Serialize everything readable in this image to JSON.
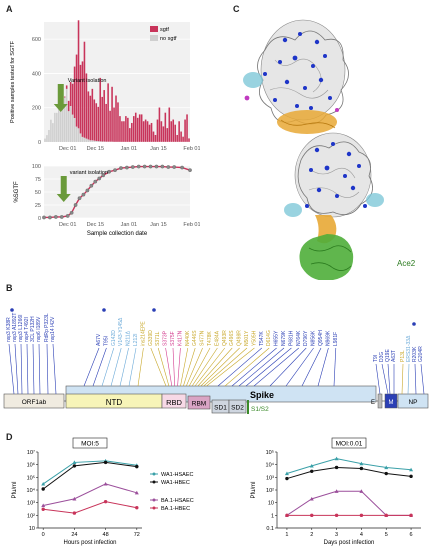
{
  "panels": {
    "a": "A",
    "b": "B",
    "c": "C",
    "d": "D"
  },
  "chart_data": [
    {
      "type": "bar",
      "id": "A-top",
      "ylabel": "Positive samples tested for SGTF",
      "ylim": [
        0,
        700
      ],
      "yticks": [
        "0",
        "200",
        "400",
        "600"
      ],
      "xticks": [
        "Dec 01",
        "Dec 15",
        "Jan 01",
        "Jan 15",
        "Feb 01"
      ],
      "legend": [
        "sgtf",
        "no sgtf"
      ],
      "legend_position": "top-right",
      "annotation": "Variant isolation",
      "series": [
        {
          "name": "no sgtf",
          "color": "#cfcfcf",
          "values": [
            20,
            40,
            70,
            130,
            110,
            170,
            170,
            230,
            250,
            220,
            260,
            310,
            180,
            210,
            160,
            140,
            90,
            80,
            50,
            30,
            25,
            20,
            15,
            10,
            10,
            8,
            6,
            5,
            4,
            3,
            3,
            2,
            2,
            2,
            2,
            1,
            1,
            1,
            1,
            1,
            1,
            1,
            1,
            1,
            1,
            1,
            1,
            1,
            1,
            1,
            1,
            1,
            1,
            1,
            1,
            1,
            1,
            1,
            1,
            1,
            1,
            1,
            1,
            1,
            1,
            1,
            1,
            1,
            1,
            1,
            1,
            1,
            1,
            1
          ]
        },
        {
          "name": "sgtf",
          "color": "#c8345a",
          "values": [
            0,
            0,
            0,
            0,
            0,
            0,
            0,
            0,
            0,
            0,
            5,
            20,
            60,
            140,
            180,
            300,
            420,
            630,
            400,
            440,
            560,
            380,
            280,
            260,
            300,
            240,
            220,
            200,
            370,
            260,
            300,
            220,
            340,
            180,
            320,
            200,
            270,
            230,
            150,
            120,
            120,
            150,
            140,
            80,
            110,
            150,
            170,
            140,
            160,
            160,
            120,
            130,
            120,
            100,
            110,
            60,
            40,
            130,
            200,
            120,
            90,
            170,
            80,
            200,
            120,
            130,
            100,
            40,
            120,
            60,
            30,
            130,
            160,
            20
          ]
        }
      ]
    },
    {
      "type": "line",
      "id": "A-bottom",
      "ylabel": "%SGTF",
      "xlabel": "Sample collection date",
      "ylim": [
        0,
        100
      ],
      "yticks": [
        "0",
        "25",
        "50",
        "75",
        "100"
      ],
      "xticks": [
        "Dec 01",
        "Dec 15",
        "Jan 01",
        "Jan 15",
        "Feb 01"
      ],
      "annotation": "variant isolation",
      "x": [
        0,
        3,
        6,
        9,
        12,
        14,
        16,
        18,
        20,
        22,
        24,
        26,
        28,
        30,
        33,
        36,
        39,
        42,
        45,
        48,
        51,
        54,
        57,
        60,
        63,
        66,
        70,
        74
      ],
      "values": [
        1,
        1,
        2,
        2,
        4,
        10,
        25,
        38,
        45,
        53,
        62,
        70,
        76,
        82,
        89,
        92,
        96,
        97,
        98,
        99,
        99,
        99,
        99,
        99,
        98,
        98,
        97,
        92
      ]
    },
    {
      "type": "line",
      "id": "D-left",
      "title": "MOI:5",
      "ylabel": "Pfu/ml",
      "xlabel": "Hours post infection",
      "log_scale": true,
      "yticks": [
        "10",
        "10²",
        "10³",
        "10⁴",
        "10⁵",
        "10⁶",
        "10⁷"
      ],
      "xticks": [
        "0",
        "24",
        "48",
        "72"
      ],
      "x": [
        0,
        24,
        48,
        72
      ],
      "series": [
        {
          "name": "WA1-HSAEC",
          "color": "#3aa0a8",
          "values": [
            30000,
            1500000,
            2000000,
            900000
          ]
        },
        {
          "name": "WA1-HBEC",
          "color": "#111111",
          "values": [
            12000,
            800000,
            1500000,
            700000
          ]
        },
        {
          "name": "BA.1-HSAEC",
          "color": "#9b4f9b",
          "values": [
            600,
            2000,
            30000,
            6000
          ]
        },
        {
          "name": "BA.1-HBEC",
          "color": "#c8345a",
          "values": [
            300,
            150,
            1200,
            400
          ]
        }
      ]
    },
    {
      "type": "line",
      "id": "D-right",
      "title": "MOI:0.01",
      "ylabel": "Pfu/ml",
      "xlabel": "Days post infection",
      "log_scale": true,
      "yticks": [
        "0.1",
        "1",
        "10",
        "10²",
        "10³",
        "10⁴",
        "10⁵"
      ],
      "xticks": [
        "1",
        "2",
        "3",
        "4",
        "5",
        "6"
      ],
      "x": [
        1,
        2,
        3,
        4,
        5,
        6
      ],
      "series": [
        {
          "name": "WA1-HSAEC",
          "color": "#3aa0a8",
          "values": [
            2000,
            8000,
            30000,
            12000,
            6000,
            4000
          ]
        },
        {
          "name": "WA1-HBEC",
          "color": "#111111",
          "values": [
            800,
            3000,
            6000,
            5000,
            2000,
            1200
          ]
        },
        {
          "name": "BA.1-HSAEC",
          "color": "#9b4f9b",
          "values": [
            1,
            20,
            80,
            80,
            1,
            1
          ]
        },
        {
          "name": "BA.1-HBEC",
          "color": "#c8345a",
          "values": [
            1,
            1,
            1,
            1,
            1,
            1
          ]
        }
      ]
    }
  ],
  "genome": {
    "segments": {
      "orf1ab": "ORF1ab",
      "ntd": "NTD",
      "rbd": "RBD",
      "rbm": "RBM",
      "spike": "Spike",
      "sd1": "SD1",
      "sd2": "SD2",
      "s1s2": "S1/S2",
      "e": "E",
      "m": "M",
      "np": "NP"
    },
    "orf1ab_mutations": [
      {
        "label": "nsp3 K38R",
        "color": "#2b3fb5"
      },
      {
        "label": "nsp3 A1892T",
        "color": "#2b3fb5"
      },
      {
        "label": "nsp3 L1266I",
        "color": "#2b3fb5"
      },
      {
        "label": "nsp4 T492I",
        "color": "#2b3fb5"
      },
      {
        "label": "3CL P132H",
        "color": "#2b3fb5"
      },
      {
        "label": "nsp6 I189V",
        "color": "#2b3fb5"
      },
      {
        "label": "RdRp P323L",
        "color": "#2b3fb5"
      },
      {
        "label": "nsp14 I42V",
        "color": "#2b3fb5"
      }
    ],
    "spike_mutations": [
      {
        "label": "A67V",
        "color": "#2b3fb5"
      },
      {
        "label": "T95I",
        "color": "#2b3fb5"
      },
      {
        "label": "G142D",
        "color": "#6aa9d8"
      },
      {
        "label": "V143-Y145Δ",
        "color": "#6aa9d8"
      },
      {
        "label": "N211Δ",
        "color": "#6aa9d8"
      },
      {
        "label": "L212I",
        "color": "#6aa9d8"
      },
      {
        "label": "ins214EPE",
        "color": "#c8a82a"
      },
      {
        "label": "G339D",
        "color": "#c8a82a"
      },
      {
        "label": "S371L",
        "color": "#c8a82a"
      },
      {
        "label": "S373P",
        "color": "#d33a8e"
      },
      {
        "label": "S375F",
        "color": "#d33a8e"
      },
      {
        "label": "K417N",
        "color": "#d33a8e"
      },
      {
        "label": "N440K",
        "color": "#c8a82a"
      },
      {
        "label": "G446S",
        "color": "#c8a82a"
      },
      {
        "label": "S477N",
        "color": "#c8a82a"
      },
      {
        "label": "T478K",
        "color": "#c8a82a"
      },
      {
        "label": "E484A",
        "color": "#c8a82a"
      },
      {
        "label": "Q493R",
        "color": "#c8a82a"
      },
      {
        "label": "G496S",
        "color": "#c8a82a"
      },
      {
        "label": "Q498R",
        "color": "#c8a82a"
      },
      {
        "label": "N501Y",
        "color": "#c8a82a"
      },
      {
        "label": "Y505H",
        "color": "#c8a82a"
      },
      {
        "label": "T547K",
        "color": "#2b3fb5"
      },
      {
        "label": "D614G",
        "color": "#c8a82a"
      },
      {
        "label": "H655Y",
        "color": "#2b3fb5"
      },
      {
        "label": "N679K",
        "color": "#2b3fb5"
      },
      {
        "label": "P681H",
        "color": "#2b3fb5"
      },
      {
        "label": "N764K",
        "color": "#2b3fb5"
      },
      {
        "label": "D796Y",
        "color": "#2b3fb5"
      },
      {
        "label": "N856K",
        "color": "#2b3fb5"
      },
      {
        "label": "Q954H",
        "color": "#2b3fb5"
      },
      {
        "label": "N969K",
        "color": "#2b3fb5"
      },
      {
        "label": "L981F",
        "color": "#2b3fb5"
      }
    ],
    "em_mutations": [
      {
        "label": "T9I",
        "color": "#2b3fb5"
      },
      {
        "label": "D3G",
        "color": "#2b3fb5"
      },
      {
        "label": "Q19E",
        "color": "#2b3fb5"
      },
      {
        "label": "A63T",
        "color": "#2b3fb5"
      }
    ],
    "np_mutations": [
      {
        "label": "P13L",
        "color": "#c8a82a"
      },
      {
        "label": "ERS31-33Δ",
        "color": "#6aa9d8"
      },
      {
        "label": "R203K",
        "color": "#2b3fb5"
      },
      {
        "label": "G204R",
        "color": "#2b3fb5"
      }
    ]
  },
  "structure": {
    "ace2_label": "Ace2"
  }
}
